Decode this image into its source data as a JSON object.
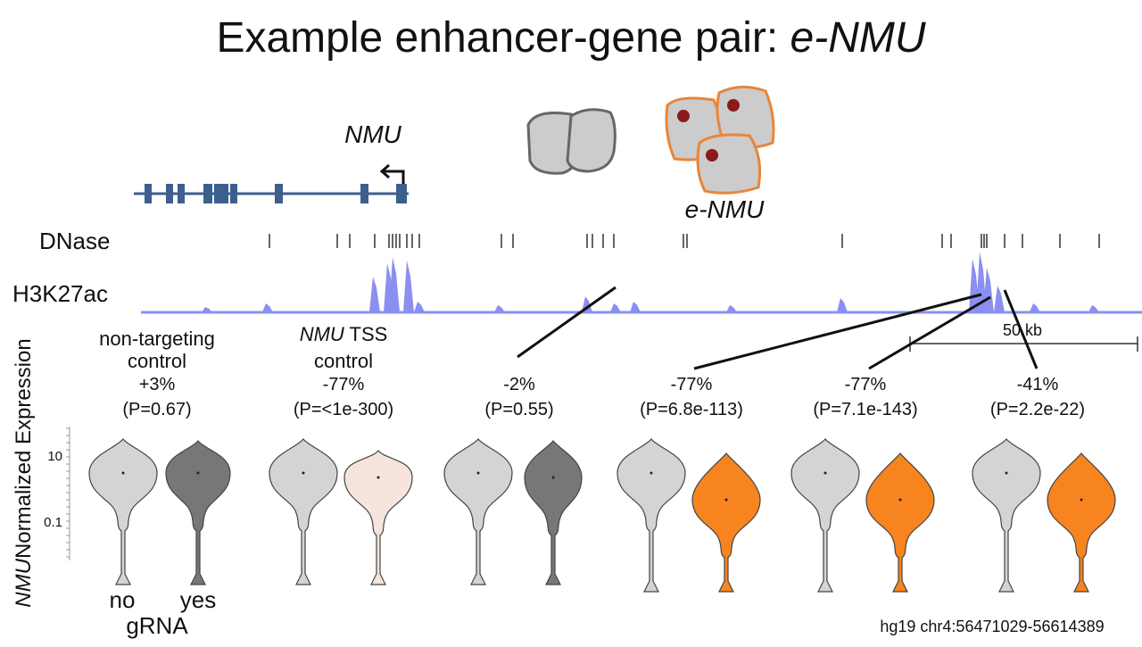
{
  "title": {
    "text": "Example enhancer-gene pair: ",
    "italic": "e-NMU"
  },
  "gene_label": "NMU",
  "enhancer_label": "e-NMU",
  "tracks": [
    "DNase",
    "H3K27ac"
  ],
  "scale_label": "50 kb",
  "y_axis": {
    "italic": "NMU",
    "label": "Normalized Expression",
    "ticks": [
      "10",
      "0.1"
    ]
  },
  "groups": [
    {
      "lines": [
        "non-targeting",
        "control"
      ],
      "change": "+3%",
      "p": "(P=0.67)"
    },
    {
      "italic": "NMU",
      "line1": " TSS",
      "lines": [
        "control"
      ],
      "change": "-77%",
      "p": "(P=<1e-300)"
    },
    {
      "change": "-2%",
      "p": "(P=0.55)"
    },
    {
      "change": "-77%",
      "p": "(P=6.8e-113)"
    },
    {
      "change": "-77%",
      "p": "(P=7.1e-143)"
    },
    {
      "change": "-41%",
      "p": "(P=2.2e-22)"
    }
  ],
  "x_labels": {
    "no": "no",
    "yes": "yes",
    "title": "gRNA"
  },
  "footer": "hg19 chr4:56471029-56614389"
}
